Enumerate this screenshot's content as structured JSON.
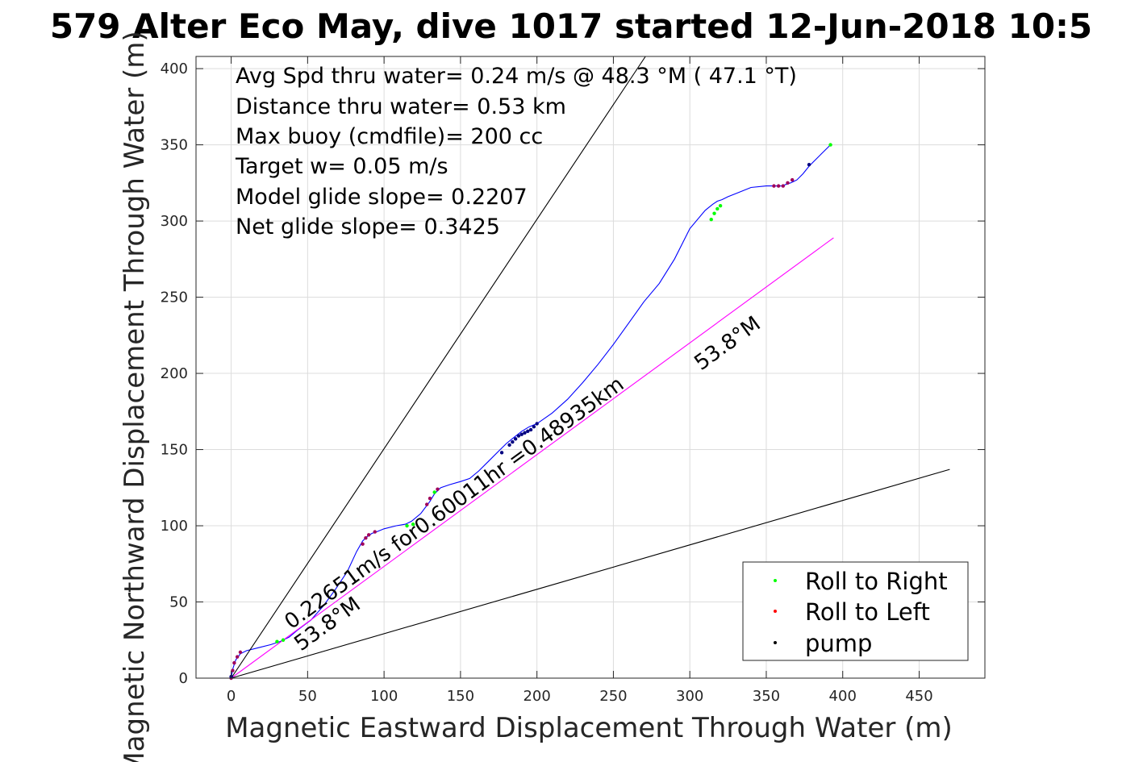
{
  "title": "579 Alter Eco May, dive 1017 started 12-Jun-2018 10:5",
  "chart_data": {
    "type": "line",
    "xlabel": "Magnetic Eastward Displacement Through Water (m)",
    "ylabel": "Magnetic Northward Displacement Through Water (m)",
    "xlim": [
      -23,
      493
    ],
    "ylim": [
      0,
      408
    ],
    "xticks": [
      0,
      50,
      100,
      150,
      200,
      250,
      300,
      350,
      400,
      450
    ],
    "yticks": [
      0,
      50,
      100,
      150,
      200,
      250,
      300,
      350,
      400
    ],
    "grid": true,
    "legend_position": "bottom-right",
    "annotations": [
      "Avg Spd thru water=  0.24 m/s @  48.3 °M ( 47.1 °T)",
      "Distance thru water=  0.53 km",
      "Max buoy (cmdfile)= 200 cc",
      "Target w= 0.05 m/s",
      "Model glide slope= 0.2207",
      "Net glide slope= 0.3425"
    ],
    "line_labels": {
      "speed": "0.22651m/s for0.60011hr =0.48935km",
      "heading_lower": "53.8°M",
      "heading_upper": "53.8°M"
    },
    "legend": [
      {
        "label": "Roll to Right",
        "color": "#00ff00"
      },
      {
        "label": "Roll to Left",
        "color": "#ff0000"
      },
      {
        "label": "pump",
        "color": "#000000"
      }
    ],
    "series": [
      {
        "color": "#0000ff",
        "x": [
          0,
          1,
          3,
          6,
          10,
          18,
          26,
          32,
          38,
          44,
          52,
          60,
          68,
          76,
          82,
          86,
          89,
          92,
          95,
          100,
          108,
          114,
          118,
          124,
          130,
          133,
          137,
          143,
          150,
          156,
          162,
          168,
          175,
          180,
          185,
          190,
          195,
          200,
          210,
          220,
          230,
          240,
          250,
          260,
          270,
          280,
          290,
          300,
          310,
          315,
          318,
          321,
          325,
          330,
          340,
          350,
          356,
          360,
          363,
          366,
          368,
          370,
          374,
          378,
          382,
          386,
          390,
          392
        ],
        "y": [
          0,
          6,
          12,
          16,
          18,
          20,
          22,
          24,
          27,
          32,
          38,
          47,
          58,
          70,
          83,
          90,
          93,
          95,
          96,
          98,
          100,
          101,
          103,
          108,
          116,
          121,
          125,
          127,
          129,
          131,
          136,
          142,
          149,
          154,
          158,
          162,
          165,
          167,
          174,
          183,
          194,
          206,
          219,
          233,
          247,
          259,
          275,
          295,
          307,
          311,
          313,
          314,
          316,
          318,
          322,
          323,
          323,
          323,
          324,
          325,
          326,
          327,
          331,
          336,
          340,
          344,
          348,
          350
        ]
      },
      {
        "color": "#ff00ff",
        "x": [
          0,
          394
        ],
        "y": [
          0,
          289
        ]
      },
      {
        "color": "#000000",
        "x": [
          0,
          271
        ],
        "y": [
          0,
          408
        ]
      },
      {
        "color": "#000000",
        "x": [
          0,
          470
        ],
        "y": [
          0,
          137
        ]
      }
    ],
    "points": {
      "roll_right": [
        [
          30,
          24
        ],
        [
          34,
          25
        ],
        [
          115,
          100
        ],
        [
          119,
          101
        ],
        [
          133,
          122
        ],
        [
          314,
          301
        ],
        [
          316,
          305
        ],
        [
          318,
          308
        ],
        [
          320,
          310
        ],
        [
          392,
          350
        ]
      ],
      "roll_left": [
        [
          0,
          0
        ],
        [
          1,
          5
        ],
        [
          2,
          10
        ],
        [
          4,
          14
        ],
        [
          6,
          17
        ],
        [
          86,
          88
        ],
        [
          88,
          92
        ],
        [
          90,
          94
        ],
        [
          94,
          96
        ],
        [
          128,
          114
        ],
        [
          130,
          118
        ],
        [
          135,
          124
        ],
        [
          355,
          323
        ],
        [
          358,
          323
        ],
        [
          361,
          323
        ],
        [
          364,
          325
        ],
        [
          367,
          327
        ]
      ],
      "pump": [
        [
          0,
          1
        ],
        [
          177,
          148
        ],
        [
          182,
          153
        ],
        [
          184,
          155
        ],
        [
          186,
          157
        ],
        [
          188,
          159
        ],
        [
          190,
          160
        ],
        [
          192,
          161
        ],
        [
          194,
          162
        ],
        [
          196,
          163
        ],
        [
          198,
          165
        ],
        [
          200,
          167
        ],
        [
          378,
          337
        ]
      ]
    }
  }
}
